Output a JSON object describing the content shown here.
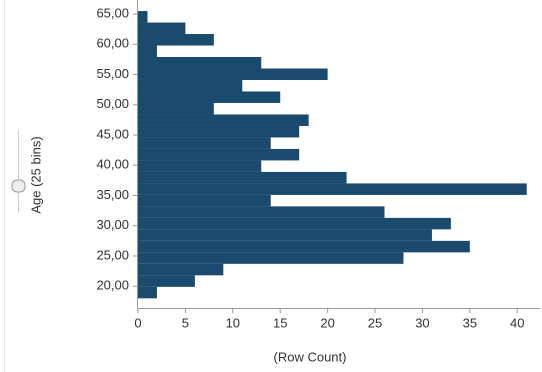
{
  "chart_data": {
    "type": "histogram",
    "orientation": "horizontal",
    "y_label": "Age (25 bins)",
    "x_label": "(Row Count)",
    "bins": [
      18,
      19.9,
      21.8,
      23.7,
      25.6,
      27.5,
      29.4,
      31.3,
      33.2,
      35.1,
      37,
      38.9,
      40.8,
      42.7,
      44.6,
      46.5,
      48.4,
      50.3,
      52.2,
      54.1,
      56,
      57.9,
      59.8,
      61.7,
      63.6,
      65.5
    ],
    "values": [
      2,
      6,
      9,
      28,
      35,
      31,
      33,
      26,
      14,
      41,
      22,
      13,
      17,
      14,
      17,
      18,
      8,
      15,
      11,
      20,
      13,
      2,
      8,
      5,
      1
    ],
    "color": "#1a4a6e",
    "ylim": [
      16.4,
      66.5
    ],
    "yticks": [
      {
        "value": 20,
        "label": "20,00"
      },
      {
        "value": 25,
        "label": "25,00"
      },
      {
        "value": 30,
        "label": "30,00"
      },
      {
        "value": 35,
        "label": "35,00"
      },
      {
        "value": 40,
        "label": "40,00"
      },
      {
        "value": 45,
        "label": "45,00"
      },
      {
        "value": 50,
        "label": "50,00"
      },
      {
        "value": 55,
        "label": "55,00"
      },
      {
        "value": 60,
        "label": "60,00"
      },
      {
        "value": 65,
        "label": "65,00"
      }
    ],
    "xlim": [
      0,
      42.4
    ],
    "xticks": [
      0,
      5,
      10,
      15,
      20,
      25,
      30,
      35,
      40
    ]
  }
}
